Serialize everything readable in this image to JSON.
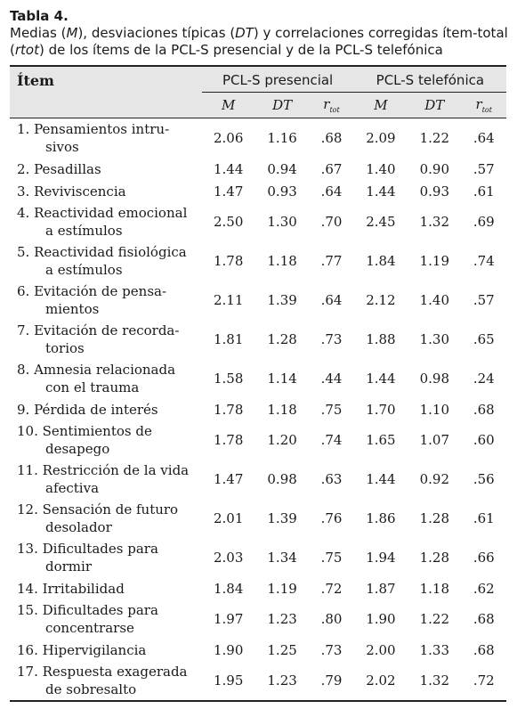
{
  "table_label": "Tabla 4.",
  "caption": {
    "p1": "Medias (",
    "m": "M",
    "p2": "), desviaciones típicas (",
    "dt": "DT",
    "p3": ") y correlaciones corregidas ítem-total",
    "p4": "(",
    "rtot": "rtot",
    "p5": ") de los ítems de la PCL-S presencial y de la PCL-S telefónica"
  },
  "headers": {
    "item": "Ítem",
    "group1": "PCL-S presencial",
    "group2": "PCL-S telefónica",
    "m": "M",
    "dt": "DT",
    "r": "r",
    "r_sub": "tot"
  },
  "rows": [
    {
      "line1": "1. Pensamientos intru-",
      "line2": "sivos",
      "m1": "2.06",
      "dt1": "1.16",
      "r1": ".68",
      "m2": "2.09",
      "dt2": "1.22",
      "r2": ".64"
    },
    {
      "line1": "2. Pesadillas",
      "line2": "",
      "m1": "1.44",
      "dt1": "0.94",
      "r1": ".67",
      "m2": "1.40",
      "dt2": "0.90",
      "r2": ".57"
    },
    {
      "line1": "3. Reviviscencia",
      "line2": "",
      "m1": "1.47",
      "dt1": "0.93",
      "r1": ".64",
      "m2": "1.44",
      "dt2": "0.93",
      "r2": ".61"
    },
    {
      "line1": "4. Reactividad emocional",
      "line2": "a estímulos",
      "m1": "2.50",
      "dt1": "1.30",
      "r1": ".70",
      "m2": "2.45",
      "dt2": "1.32",
      "r2": ".69"
    },
    {
      "line1": "5. Reactividad fisiológica",
      "line2": "a estímulos",
      "m1": "1.78",
      "dt1": "1.18",
      "r1": ".77",
      "m2": "1.84",
      "dt2": "1.19",
      "r2": ".74"
    },
    {
      "line1": "6. Evitación de pensa-",
      "line2": "mientos",
      "m1": "2.11",
      "dt1": "1.39",
      "r1": ".64",
      "m2": "2.12",
      "dt2": "1.40",
      "r2": ".57"
    },
    {
      "line1": "7. Evitación de recorda-",
      "line2": "torios",
      "m1": "1.81",
      "dt1": "1.28",
      "r1": ".73",
      "m2": "1.88",
      "dt2": "1.30",
      "r2": ".65"
    },
    {
      "line1": "8. Amnesia relacionada",
      "line2": "con el trauma",
      "m1": "1.58",
      "dt1": "1.14",
      "r1": ".44",
      "m2": "1.44",
      "dt2": "0.98",
      "r2": ".24"
    },
    {
      "line1": "9. Pérdida de interés",
      "line2": "",
      "m1": "1.78",
      "dt1": "1.18",
      "r1": ".75",
      "m2": "1.70",
      "dt2": "1.10",
      "r2": ".68"
    },
    {
      "line1": "10. Sentimientos de",
      "line2": "desapego",
      "m1": "1.78",
      "dt1": "1.20",
      "r1": ".74",
      "m2": "1.65",
      "dt2": "1.07",
      "r2": ".60"
    },
    {
      "line1": "11. Restricción de la vida",
      "line2": "afectiva",
      "m1": "1.47",
      "dt1": "0.98",
      "r1": ".63",
      "m2": "1.44",
      "dt2": "0.92",
      "r2": ".56"
    },
    {
      "line1": "12. Sensación de futuro",
      "line2": "desolador",
      "m1": "2.01",
      "dt1": "1.39",
      "r1": ".76",
      "m2": "1.86",
      "dt2": "1.28",
      "r2": ".61"
    },
    {
      "line1": "13. Dificultades para",
      "line2": "dormir",
      "m1": "2.03",
      "dt1": "1.34",
      "r1": ".75",
      "m2": "1.94",
      "dt2": "1.28",
      "r2": ".66"
    },
    {
      "line1": "14. Irritabilidad",
      "line2": "",
      "m1": "1.84",
      "dt1": "1.19",
      "r1": ".72",
      "m2": "1.87",
      "dt2": "1.18",
      "r2": ".62"
    },
    {
      "line1": "15. Dificultades para",
      "line2": "concentrarse",
      "m1": "1.97",
      "dt1": "1.23",
      "r1": ".80",
      "m2": "1.90",
      "dt2": "1.22",
      "r2": ".68"
    },
    {
      "line1": "16. Hipervigilancia",
      "line2": "",
      "m1": "1.90",
      "dt1": "1.25",
      "r1": ".73",
      "m2": "2.00",
      "dt2": "1.33",
      "r2": ".68"
    },
    {
      "line1": "17. Respuesta exagerada",
      "line2": "de sobresalto",
      "m1": "1.95",
      "dt1": "1.23",
      "r1": ".79",
      "m2": "2.02",
      "dt2": "1.32",
      "r2": ".72"
    }
  ]
}
